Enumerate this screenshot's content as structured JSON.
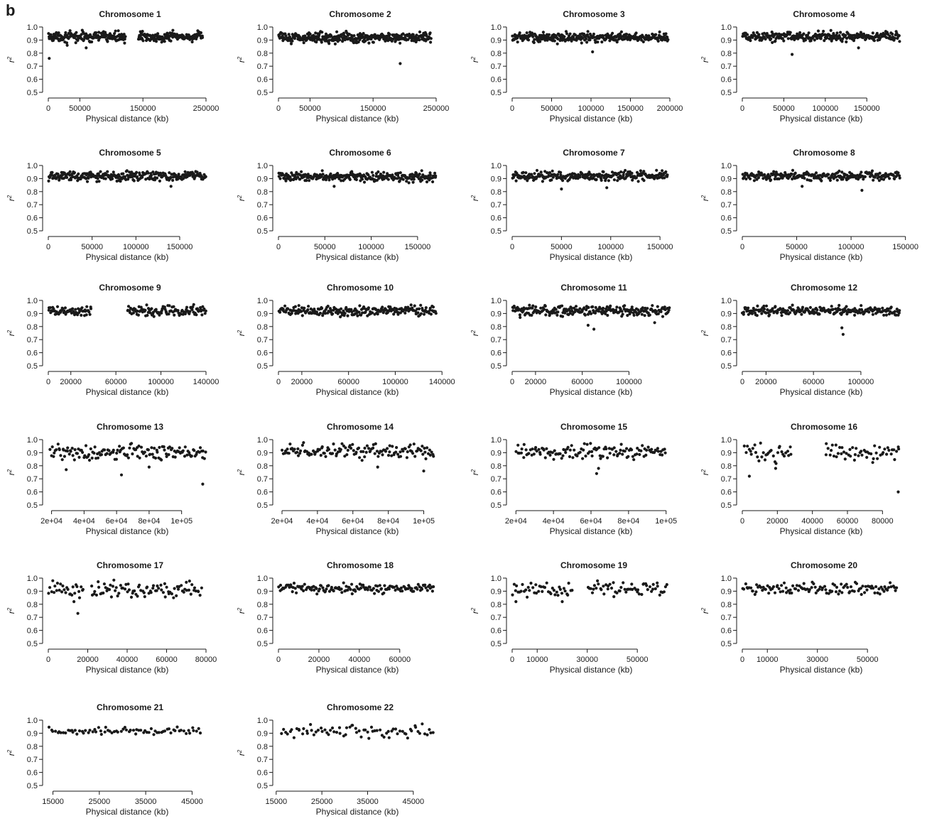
{
  "panel_letter": "b",
  "colors": {
    "points": "#1a1a1a",
    "axis": "#1a1a1a",
    "background": "#ffffff"
  },
  "chart_data": [
    {
      "type": "scatter",
      "title": "Chromosome 1",
      "xlabel": "Physical distance (kb)",
      "ylabel": "r2",
      "ylim": [
        0.5,
        1.0
      ],
      "yticks": [
        "0.5",
        "0.6",
        "0.7",
        "0.8",
        "0.9",
        "1.0"
      ],
      "xlim": [
        0,
        250000
      ],
      "xticks": [
        0,
        50000,
        150000,
        250000
      ],
      "xtick_labels": [
        "0",
        "50000",
        "150000",
        "250000"
      ],
      "x_start": 0,
      "x_end": 245000,
      "gaps": [
        [
          123000,
          143000
        ]
      ],
      "n": 340,
      "center": 0.925,
      "spread": 0.02,
      "outliers": [
        [
          1500,
          0.76
        ],
        [
          30000,
          0.86
        ],
        [
          60000,
          0.84
        ]
      ]
    },
    {
      "type": "scatter",
      "title": "Chromosome 2",
      "xlabel": "Physical distance (kb)",
      "ylabel": "r2",
      "ylim": [
        0.5,
        1.0
      ],
      "yticks": [
        "0.5",
        "0.6",
        "0.7",
        "0.8",
        "0.9",
        "1.0"
      ],
      "xlim": [
        0,
        250000
      ],
      "xticks": [
        0,
        50000,
        150000,
        250000
      ],
      "xtick_labels": [
        "0",
        "50000",
        "150000",
        "250000"
      ],
      "x_start": 0,
      "x_end": 242000,
      "gaps": [],
      "n": 360,
      "center": 0.92,
      "spread": 0.02,
      "outliers": [
        [
          193000,
          0.72
        ],
        [
          90000,
          0.87
        ]
      ]
    },
    {
      "type": "scatter",
      "title": "Chromosome 3",
      "xlabel": "Physical distance (kb)",
      "ylabel": "r2",
      "ylim": [
        0.5,
        1.0
      ],
      "yticks": [
        "0.5",
        "0.6",
        "0.7",
        "0.8",
        "0.9",
        "1.0"
      ],
      "xlim": [
        0,
        200000
      ],
      "xticks": [
        0,
        50000,
        100000,
        150000,
        200000
      ],
      "xtick_labels": [
        "0",
        "50000",
        "100000",
        "150000",
        "200000"
      ],
      "x_start": 0,
      "x_end": 198000,
      "gaps": [],
      "n": 320,
      "center": 0.92,
      "spread": 0.02,
      "outliers": [
        [
          102000,
          0.81
        ]
      ]
    },
    {
      "type": "scatter",
      "title": "Chromosome 4",
      "xlabel": "Physical distance (kb)",
      "ylabel": "r2",
      "ylim": [
        0.5,
        1.0
      ],
      "yticks": [
        "0.5",
        "0.6",
        "0.7",
        "0.8",
        "0.9",
        "1.0"
      ],
      "xlim": [
        0,
        190000
      ],
      "xticks": [
        0,
        50000,
        100000,
        150000
      ],
      "xtick_labels": [
        "0",
        "50000",
        "100000",
        "150000"
      ],
      "x_start": 0,
      "x_end": 190000,
      "gaps": [],
      "n": 300,
      "center": 0.925,
      "spread": 0.02,
      "outliers": [
        [
          60000,
          0.79
        ],
        [
          140000,
          0.84
        ]
      ]
    },
    {
      "type": "scatter",
      "title": "Chromosome 5",
      "xlabel": "Physical distance (kb)",
      "ylabel": "r2",
      "ylim": [
        0.5,
        1.0
      ],
      "yticks": [
        "0.5",
        "0.6",
        "0.7",
        "0.8",
        "0.9",
        "1.0"
      ],
      "xlim": [
        0,
        180000
      ],
      "xticks": [
        0,
        50000,
        100000,
        150000
      ],
      "xtick_labels": [
        "0",
        "50000",
        "100000",
        "150000"
      ],
      "x_start": 0,
      "x_end": 180000,
      "gaps": [],
      "n": 300,
      "center": 0.92,
      "spread": 0.02,
      "outliers": [
        [
          140000,
          0.84
        ]
      ]
    },
    {
      "type": "scatter",
      "title": "Chromosome 6",
      "xlabel": "Physical distance (kb)",
      "ylabel": "r2",
      "ylim": [
        0.5,
        1.0
      ],
      "yticks": [
        "0.5",
        "0.6",
        "0.7",
        "0.8",
        "0.9",
        "1.0"
      ],
      "xlim": [
        0,
        170000
      ],
      "xticks": [
        0,
        50000,
        100000,
        150000
      ],
      "xtick_labels": [
        "0",
        "50000",
        "100000",
        "150000"
      ],
      "x_start": 0,
      "x_end": 170000,
      "gaps": [],
      "n": 290,
      "center": 0.915,
      "spread": 0.02,
      "outliers": [
        [
          60000,
          0.84
        ]
      ]
    },
    {
      "type": "scatter",
      "title": "Chromosome 7",
      "xlabel": "Physical distance (kb)",
      "ylabel": "r2",
      "ylim": [
        0.5,
        1.0
      ],
      "yticks": [
        "0.5",
        "0.6",
        "0.7",
        "0.8",
        "0.9",
        "1.0"
      ],
      "xlim": [
        0,
        160000
      ],
      "xticks": [
        0,
        50000,
        100000,
        150000
      ],
      "xtick_labels": [
        "0",
        "50000",
        "100000",
        "150000"
      ],
      "x_start": 0,
      "x_end": 158000,
      "gaps": [],
      "n": 260,
      "center": 0.92,
      "spread": 0.02,
      "outliers": [
        [
          50000,
          0.82
        ],
        [
          96000,
          0.83
        ]
      ]
    },
    {
      "type": "scatter",
      "title": "Chromosome 8",
      "xlabel": "Physical distance (kb)",
      "ylabel": "r2",
      "ylim": [
        0.5,
        1.0
      ],
      "yticks": [
        "0.5",
        "0.6",
        "0.7",
        "0.8",
        "0.9",
        "1.0"
      ],
      "xlim": [
        0,
        145000
      ],
      "xticks": [
        0,
        50000,
        100000,
        150000
      ],
      "xtick_labels": [
        "0",
        "50000",
        "100000",
        "150000"
      ],
      "x_start": 0,
      "x_end": 145000,
      "gaps": [],
      "n": 250,
      "center": 0.92,
      "spread": 0.02,
      "outliers": [
        [
          110000,
          0.81
        ],
        [
          55000,
          0.84
        ]
      ]
    },
    {
      "type": "scatter",
      "title": "Chromosome 9",
      "xlabel": "Physical distance (kb)",
      "ylabel": "r2",
      "ylim": [
        0.5,
        1.0
      ],
      "yticks": [
        "0.5",
        "0.6",
        "0.7",
        "0.8",
        "0.9",
        "1.0"
      ],
      "xlim": [
        0,
        140000
      ],
      "xticks": [
        0,
        20000,
        60000,
        100000,
        140000
      ],
      "xtick_labels": [
        "0",
        "20000",
        "60000",
        "100000",
        "140000"
      ],
      "x_start": 0,
      "x_end": 140000,
      "gaps": [
        [
          38000,
          70000
        ]
      ],
      "n": 230,
      "center": 0.92,
      "spread": 0.02,
      "outliers": []
    },
    {
      "type": "scatter",
      "title": "Chromosome 10",
      "xlabel": "Physical distance (kb)",
      "ylabel": "r2",
      "ylim": [
        0.5,
        1.0
      ],
      "yticks": [
        "0.5",
        "0.6",
        "0.7",
        "0.8",
        "0.9",
        "1.0"
      ],
      "xlim": [
        0,
        135000
      ],
      "xticks": [
        0,
        20000,
        60000,
        100000,
        140000
      ],
      "xtick_labels": [
        "0",
        "20000",
        "60000",
        "100000",
        "140000"
      ],
      "x_start": 0,
      "x_end": 135000,
      "gaps": [],
      "n": 240,
      "center": 0.92,
      "spread": 0.02,
      "outliers": []
    },
    {
      "type": "scatter",
      "title": "Chromosome 11",
      "xlabel": "Physical distance (kb)",
      "ylabel": "r2",
      "ylim": [
        0.5,
        1.0
      ],
      "yticks": [
        "0.5",
        "0.6",
        "0.7",
        "0.8",
        "0.9",
        "1.0"
      ],
      "xlim": [
        0,
        135000
      ],
      "xticks": [
        0,
        20000,
        60000,
        100000
      ],
      "xtick_labels": [
        "0",
        "20000",
        "60000",
        "100000"
      ],
      "x_start": 0,
      "x_end": 135000,
      "gaps": [],
      "n": 240,
      "center": 0.92,
      "spread": 0.02,
      "outliers": [
        [
          65000,
          0.81
        ],
        [
          70000,
          0.78
        ],
        [
          122000,
          0.83
        ]
      ]
    },
    {
      "type": "scatter",
      "title": "Chromosome 12",
      "xlabel": "Physical distance (kb)",
      "ylabel": "r2",
      "ylim": [
        0.5,
        1.0
      ],
      "yticks": [
        "0.5",
        "0.6",
        "0.7",
        "0.8",
        "0.9",
        "1.0"
      ],
      "xlim": [
        0,
        133000
      ],
      "xticks": [
        0,
        20000,
        60000,
        100000
      ],
      "xtick_labels": [
        "0",
        "20000",
        "60000",
        "100000"
      ],
      "x_start": 0,
      "x_end": 133000,
      "gaps": [],
      "n": 230,
      "center": 0.92,
      "spread": 0.02,
      "outliers": [
        [
          85000,
          0.74
        ],
        [
          84000,
          0.79
        ]
      ]
    },
    {
      "type": "scatter",
      "title": "Chromosome 13",
      "xlabel": "Physical distance (kb)",
      "ylabel": "r2",
      "ylim": [
        0.5,
        1.0
      ],
      "yticks": [
        "0.5",
        "0.6",
        "0.7",
        "0.8",
        "0.9",
        "1.0"
      ],
      "xlim": [
        18000,
        115000
      ],
      "xticks": [
        20000,
        40000,
        60000,
        80000,
        100000
      ],
      "xtick_labels": [
        "2e+04",
        "4e+04",
        "6e+04",
        "8e+04",
        "1e+05"
      ],
      "x_start": 19000,
      "x_end": 115000,
      "gaps": [],
      "n": 150,
      "center": 0.905,
      "spread": 0.03,
      "outliers": [
        [
          29000,
          0.77
        ],
        [
          63000,
          0.73
        ],
        [
          113000,
          0.66
        ],
        [
          80000,
          0.79
        ]
      ]
    },
    {
      "type": "scatter",
      "title": "Chromosome 14",
      "xlabel": "Physical distance (kb)",
      "ylabel": "r2",
      "ylim": [
        0.5,
        1.0
      ],
      "yticks": [
        "0.5",
        "0.6",
        "0.7",
        "0.8",
        "0.9",
        "1.0"
      ],
      "xlim": [
        18000,
        107000
      ],
      "xticks": [
        20000,
        40000,
        60000,
        80000,
        100000
      ],
      "xtick_labels": [
        "2e+04",
        "4e+04",
        "6e+04",
        "8e+04",
        "1e+05"
      ],
      "x_start": 20000,
      "x_end": 106000,
      "gaps": [],
      "n": 140,
      "center": 0.91,
      "spread": 0.03,
      "outliers": [
        [
          100000,
          0.76
        ],
        [
          74000,
          0.79
        ]
      ]
    },
    {
      "type": "scatter",
      "title": "Chromosome 15",
      "xlabel": "Physical distance (kb)",
      "ylabel": "r2",
      "ylim": [
        0.5,
        1.0
      ],
      "yticks": [
        "0.5",
        "0.6",
        "0.7",
        "0.8",
        "0.9",
        "1.0"
      ],
      "xlim": [
        18000,
        102000
      ],
      "xticks": [
        20000,
        40000,
        60000,
        80000,
        100000
      ],
      "xtick_labels": [
        "2e+04",
        "4e+04",
        "6e+04",
        "8e+04",
        "1e+05"
      ],
      "x_start": 20000,
      "x_end": 100000,
      "gaps": [],
      "n": 130,
      "center": 0.91,
      "spread": 0.03,
      "outliers": [
        [
          63000,
          0.74
        ],
        [
          64000,
          0.78
        ]
      ]
    },
    {
      "type": "scatter",
      "title": "Chromosome 16",
      "xlabel": "Physical distance (kb)",
      "ylabel": "r2",
      "ylim": [
        0.5,
        1.0
      ],
      "yticks": [
        "0.5",
        "0.6",
        "0.7",
        "0.8",
        "0.9",
        "1.0"
      ],
      "xlim": [
        0,
        90000
      ],
      "xticks": [
        0,
        20000,
        40000,
        60000,
        80000
      ],
      "xtick_labels": [
        "0",
        "20000",
        "40000",
        "60000",
        "80000"
      ],
      "x_start": 1000,
      "x_end": 90000,
      "gaps": [
        [
          28000,
          47000
        ]
      ],
      "n": 110,
      "center": 0.895,
      "spread": 0.04,
      "outliers": [
        [
          4000,
          0.72
        ],
        [
          89000,
          0.6
        ],
        [
          19000,
          0.78
        ]
      ]
    },
    {
      "type": "scatter",
      "title": "Chromosome 17",
      "xlabel": "Physical distance (kb)",
      "ylabel": "r2",
      "ylim": [
        0.5,
        1.0
      ],
      "yticks": [
        "0.5",
        "0.6",
        "0.7",
        "0.8",
        "0.9",
        "1.0"
      ],
      "xlim": [
        0,
        80000
      ],
      "xticks": [
        0,
        20000,
        40000,
        60000,
        80000
      ],
      "xtick_labels": [
        "0",
        "20000",
        "40000",
        "60000",
        "80000"
      ],
      "x_start": 0,
      "x_end": 78000,
      "gaps": [
        [
          18000,
          22000
        ]
      ],
      "n": 120,
      "center": 0.91,
      "spread": 0.035,
      "outliers": [
        [
          15000,
          0.73
        ],
        [
          13000,
          0.82
        ]
      ]
    },
    {
      "type": "scatter",
      "title": "Chromosome 18",
      "xlabel": "Physical distance (kb)",
      "ylabel": "r2",
      "ylim": [
        0.5,
        1.0
      ],
      "yticks": [
        "0.5",
        "0.6",
        "0.7",
        "0.8",
        "0.9",
        "1.0"
      ],
      "xlim": [
        0,
        78000
      ],
      "xticks": [
        0,
        20000,
        40000,
        60000
      ],
      "xtick_labels": [
        "0",
        "20000",
        "40000",
        "60000"
      ],
      "x_start": 0,
      "x_end": 77000,
      "gaps": [],
      "n": 150,
      "center": 0.92,
      "spread": 0.018,
      "outliers": []
    },
    {
      "type": "scatter",
      "title": "Chromosome 19",
      "xlabel": "Physical distance (kb)",
      "ylabel": "r2",
      "ylim": [
        0.5,
        1.0
      ],
      "yticks": [
        "0.5",
        "0.6",
        "0.7",
        "0.8",
        "0.9",
        "1.0"
      ],
      "xlim": [
        0,
        63000
      ],
      "xticks": [
        0,
        10000,
        30000,
        50000
      ],
      "xtick_labels": [
        "0",
        "10000",
        "30000",
        "50000"
      ],
      "x_start": 0,
      "x_end": 62000,
      "gaps": [
        [
          24000,
          30000
        ]
      ],
      "n": 110,
      "center": 0.915,
      "spread": 0.03,
      "outliers": [
        [
          1500,
          0.82
        ],
        [
          20000,
          0.82
        ]
      ]
    },
    {
      "type": "scatter",
      "title": "Chromosome 20",
      "xlabel": "Physical distance (kb)",
      "ylabel": "r2",
      "ylim": [
        0.5,
        1.0
      ],
      "yticks": [
        "0.5",
        "0.6",
        "0.7",
        "0.8",
        "0.9",
        "1.0"
      ],
      "xlim": [
        0,
        63000
      ],
      "xticks": [
        0,
        10000,
        30000,
        50000
      ],
      "xtick_labels": [
        "0",
        "10000",
        "30000",
        "50000"
      ],
      "x_start": 0,
      "x_end": 62000,
      "gaps": [],
      "n": 120,
      "center": 0.92,
      "spread": 0.025,
      "outliers": []
    },
    {
      "type": "scatter",
      "title": "Chromosome 21",
      "xlabel": "Physical distance (kb)",
      "ylabel": "r2",
      "ylim": [
        0.5,
        1.0
      ],
      "yticks": [
        "0.5",
        "0.6",
        "0.7",
        "0.8",
        "0.9",
        "1.0"
      ],
      "xlim": [
        14000,
        48000
      ],
      "xticks": [
        15000,
        25000,
        35000,
        45000
      ],
      "xtick_labels": [
        "15000",
        "25000",
        "35000",
        "45000"
      ],
      "x_start": 14000,
      "x_end": 47000,
      "gaps": [],
      "n": 75,
      "center": 0.92,
      "spread": 0.018,
      "outliers": []
    },
    {
      "type": "scatter",
      "title": "Chromosome 22",
      "xlabel": "Physical distance (kb)",
      "ylabel": "r2",
      "ylim": [
        0.5,
        1.0
      ],
      "yticks": [
        "0.5",
        "0.6",
        "0.7",
        "0.8",
        "0.9",
        "1.0"
      ],
      "xlim": [
        15500,
        50000
      ],
      "xticks": [
        15000,
        25000,
        35000,
        45000
      ],
      "xtick_labels": [
        "15000",
        "25000",
        "35000",
        "45000"
      ],
      "x_start": 16000,
      "x_end": 49500,
      "gaps": [],
      "n": 75,
      "center": 0.915,
      "spread": 0.025,
      "outliers": []
    }
  ]
}
